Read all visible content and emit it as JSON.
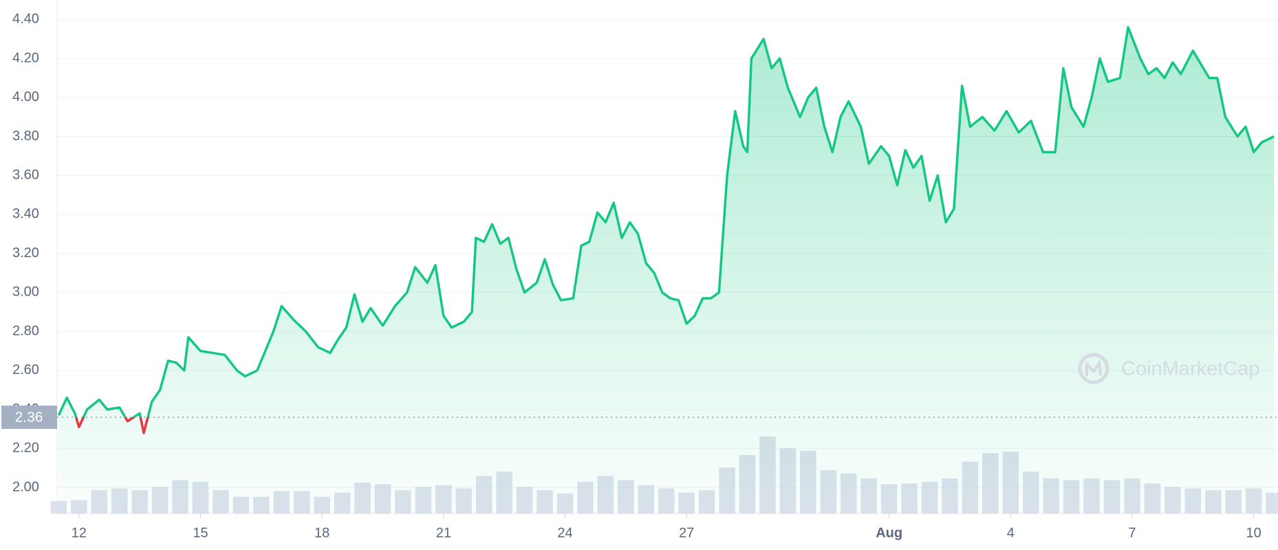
{
  "chart_data": {
    "type": "line",
    "watermark": "CoinMarketCap",
    "color": "#16c784",
    "down_color": "#ea3943",
    "reference_price": 2.36,
    "xlim": [
      11.46,
      41.6
    ],
    "xticks": [
      12,
      15,
      18,
      21,
      24,
      27,
      {
        "value": 32,
        "label": "Aug"
      },
      {
        "value": 35,
        "label": "4"
      },
      {
        "value": 38,
        "label": "7"
      },
      {
        "value": 41,
        "label": "10"
      }
    ],
    "ylim": [
      1.866,
      4.5
    ],
    "yticks": [
      {
        "value": 2.0,
        "label": "2.00"
      },
      {
        "value": 2.2,
        "label": "2.20"
      },
      {
        "value": 2.4,
        "label": "2.40"
      },
      {
        "value": 2.6,
        "label": "2.60"
      },
      {
        "value": 2.8,
        "label": "2.80"
      },
      {
        "value": 3.0,
        "label": "3.00"
      },
      {
        "value": 3.2,
        "label": "3.20"
      },
      {
        "value": 3.4,
        "label": "3.40"
      },
      {
        "value": 3.6,
        "label": "3.60"
      },
      {
        "value": 3.8,
        "label": "3.80"
      },
      {
        "value": 4.0,
        "label": "4.00"
      },
      {
        "value": 4.2,
        "label": "4.20"
      },
      {
        "value": 4.4,
        "label": "4.40"
      }
    ],
    "grid": true,
    "x": [
      11.5,
      11.7,
      11.9,
      12.0,
      12.2,
      12.5,
      12.7,
      13.0,
      13.2,
      13.5,
      13.6,
      13.8,
      14.0,
      14.2,
      14.4,
      14.6,
      14.7,
      15.0,
      15.3,
      15.6,
      15.9,
      16.1,
      16.4,
      16.6,
      16.8,
      17.0,
      17.3,
      17.6,
      17.9,
      18.2,
      18.4,
      18.6,
      18.8,
      19.0,
      19.2,
      19.5,
      19.8,
      20.1,
      20.3,
      20.6,
      20.8,
      21.0,
      21.2,
      21.5,
      21.7,
      21.8,
      22.0,
      22.2,
      22.4,
      22.6,
      22.8,
      23.0,
      23.3,
      23.5,
      23.7,
      23.9,
      24.2,
      24.4,
      24.6,
      24.8,
      25.0,
      25.2,
      25.4,
      25.6,
      25.8,
      26.0,
      26.2,
      26.4,
      26.6,
      26.8,
      27.0,
      27.2,
      27.4,
      27.6,
      27.8,
      28.0,
      28.2,
      28.4,
      28.5,
      28.6,
      28.9,
      29.1,
      29.3,
      29.5,
      29.8,
      30.0,
      30.2,
      30.4,
      30.6,
      30.8,
      31.0,
      31.3,
      31.5,
      31.8,
      32.0,
      32.2,
      32.4,
      32.6,
      32.8,
      33.0,
      33.2,
      33.4,
      33.6,
      33.8,
      34.0,
      34.3,
      34.6,
      34.9,
      35.2,
      35.5,
      35.8,
      36.1,
      36.3,
      36.5,
      36.8,
      37.0,
      37.2,
      37.4,
      37.7,
      37.9,
      38.2,
      38.4,
      38.6,
      38.8,
      39.0,
      39.2,
      39.5,
      39.7,
      39.9,
      40.1,
      40.3,
      40.6,
      40.8,
      41.0,
      41.2,
      41.5
    ],
    "values": [
      2.37,
      2.46,
      2.38,
      2.31,
      2.4,
      2.45,
      2.4,
      2.41,
      2.34,
      2.38,
      2.28,
      2.44,
      2.5,
      2.65,
      2.64,
      2.6,
      2.77,
      2.7,
      2.69,
      2.68,
      2.6,
      2.57,
      2.6,
      2.7,
      2.8,
      2.93,
      2.86,
      2.8,
      2.72,
      2.69,
      2.76,
      2.82,
      2.99,
      2.85,
      2.92,
      2.83,
      2.93,
      3.0,
      3.13,
      3.05,
      3.14,
      2.88,
      2.82,
      2.85,
      2.9,
      3.28,
      3.26,
      3.35,
      3.25,
      3.28,
      3.12,
      3.0,
      3.05,
      3.17,
      3.04,
      2.96,
      2.97,
      3.24,
      3.26,
      3.41,
      3.36,
      3.46,
      3.28,
      3.36,
      3.3,
      3.15,
      3.1,
      3.0,
      2.97,
      2.96,
      2.84,
      2.88,
      2.97,
      2.97,
      3.0,
      3.6,
      3.93,
      3.75,
      3.72,
      4.2,
      4.3,
      4.15,
      4.2,
      4.05,
      3.9,
      4.0,
      4.05,
      3.85,
      3.72,
      3.9,
      3.98,
      3.85,
      3.66,
      3.75,
      3.7,
      3.55,
      3.73,
      3.64,
      3.7,
      3.47,
      3.6,
      3.36,
      3.43,
      4.06,
      3.85,
      3.9,
      3.83,
      3.93,
      3.82,
      3.88,
      3.72,
      3.72,
      4.15,
      3.95,
      3.85,
      4.0,
      4.2,
      4.08,
      4.1,
      4.36,
      4.2,
      4.12,
      4.15,
      4.1,
      4.18,
      4.12,
      4.24,
      4.17,
      4.1,
      4.1,
      3.9,
      3.8,
      3.85,
      3.72,
      3.77,
      3.8
    ],
    "volume": {
      "color": "#cfd6e4",
      "x": [
        11.5,
        12,
        12.5,
        13,
        13.5,
        14,
        14.5,
        15,
        15.5,
        16,
        16.5,
        17,
        17.5,
        18,
        18.5,
        19,
        19.5,
        20,
        20.5,
        21,
        21.5,
        22,
        22.5,
        23,
        23.5,
        24,
        24.5,
        25,
        25.5,
        26,
        26.5,
        27,
        27.5,
        28,
        28.5,
        29,
        29.5,
        30,
        30.5,
        31,
        31.5,
        32,
        32.5,
        33,
        33.5,
        34,
        34.5,
        35,
        35.5,
        36,
        36.5,
        37,
        37.5,
        38,
        38.5,
        39,
        39.5,
        40,
        40.5,
        41,
        41.5
      ],
      "values": [
        15,
        16,
        28,
        30,
        28,
        32,
        40,
        38,
        28,
        20,
        20,
        27,
        27,
        20,
        25,
        37,
        35,
        28,
        32,
        34,
        30,
        45,
        50,
        32,
        28,
        24,
        38,
        45,
        40,
        34,
        30,
        25,
        28,
        55,
        70,
        92,
        78,
        75,
        52,
        48,
        42,
        35,
        36,
        38,
        42,
        62,
        72,
        74,
        50,
        42,
        40,
        42,
        40,
        42,
        36,
        32,
        30,
        28,
        28,
        30,
        25
      ]
    }
  }
}
